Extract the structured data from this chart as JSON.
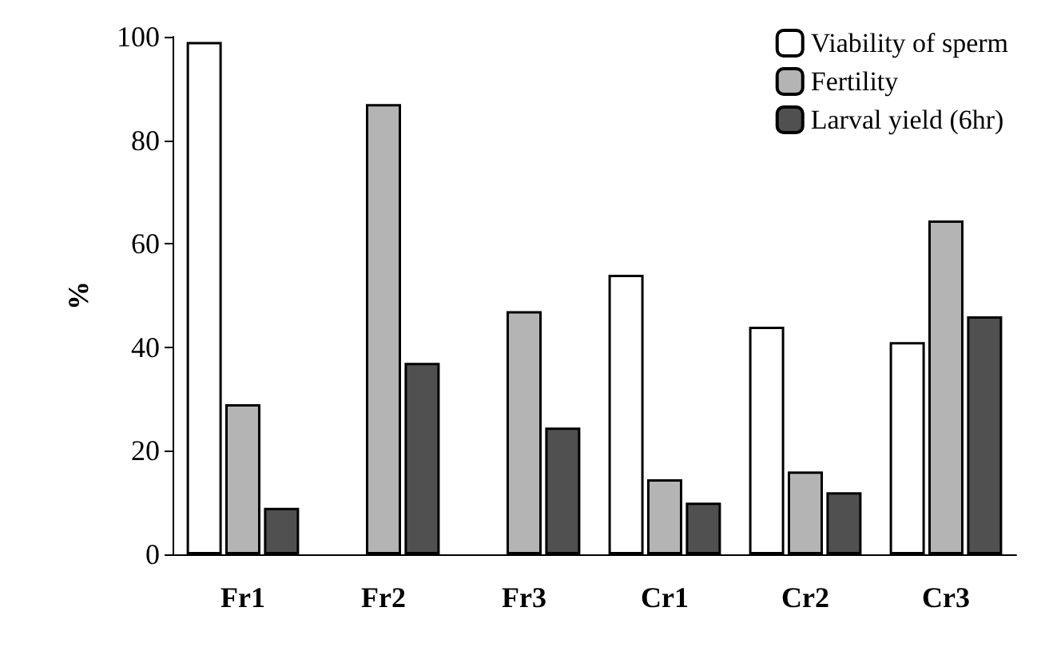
{
  "chart_data": {
    "type": "bar",
    "ylabel": "%",
    "categories": [
      "Fr1",
      "Fr2",
      "Fr3",
      "Cr1",
      "Cr2",
      "Cr3"
    ],
    "series": [
      {
        "name": "Viability of sperm",
        "color": "#ffffff",
        "values": [
          99,
          null,
          null,
          54,
          44,
          41
        ]
      },
      {
        "name": "Fertility",
        "color": "#b4b4b4",
        "values": [
          29,
          87,
          47,
          14.5,
          16,
          64.5
        ]
      },
      {
        "name": "Larval yield (6hr)",
        "color": "#505050",
        "values": [
          9,
          37,
          24.5,
          10,
          12,
          46
        ]
      }
    ],
    "ylim": [
      0,
      100
    ],
    "yticks": [
      0,
      20,
      40,
      60,
      80,
      100
    ],
    "grid": false,
    "legend": "top right"
  }
}
